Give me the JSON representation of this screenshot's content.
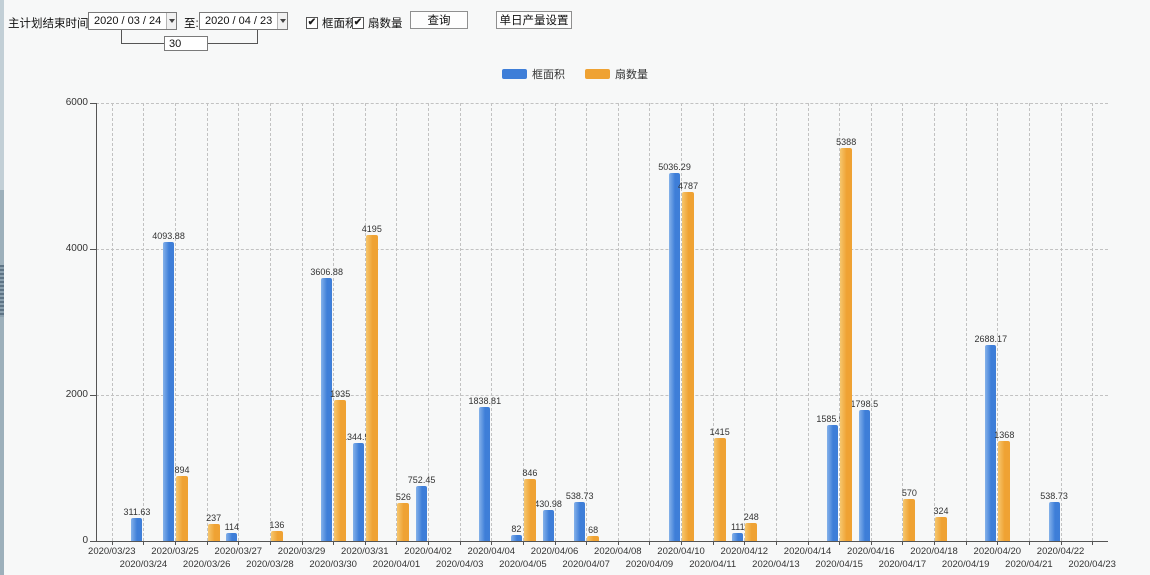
{
  "toolbar": {
    "end_time_label": "主计划结束时间:",
    "start_date": "2020 / 03 / 24",
    "to_label": "至:",
    "end_date": "2020 / 04 / 23",
    "interval_days": "30",
    "checkboxes": [
      {
        "label": "框面积",
        "checked": true,
        "check_glyph": "✔"
      },
      {
        "label": "扇数量",
        "checked": true,
        "check_glyph": "✔"
      }
    ],
    "query_button": "查询",
    "daily_output_button": "单日产量设置"
  },
  "chart_data": {
    "type": "bar",
    "title": "",
    "xlabel": "",
    "ylabel": "",
    "ylim": [
      0,
      6000
    ],
    "yticks": [
      0,
      2000,
      4000,
      6000
    ],
    "grid": true,
    "legend_position": "top",
    "categories": [
      "2020/03/23",
      "2020/03/24",
      "2020/03/25",
      "2020/03/26",
      "2020/03/27",
      "2020/03/28",
      "2020/03/29",
      "2020/03/30",
      "2020/03/31",
      "2020/04/01",
      "2020/04/02",
      "2020/04/03",
      "2020/04/04",
      "2020/04/05",
      "2020/04/06",
      "2020/04/07",
      "2020/04/08",
      "2020/04/09",
      "2020/04/10",
      "2020/04/11",
      "2020/04/12",
      "2020/04/13",
      "2020/04/14",
      "2020/04/15",
      "2020/04/16",
      "2020/04/17",
      "2020/04/18",
      "2020/04/19",
      "2020/04/20",
      "2020/04/21",
      "2020/04/22",
      "2020/04/23"
    ],
    "series": [
      {
        "name": "框面积",
        "color": "#3e7ed8",
        "color_light": "#85b2ea",
        "values": [
          null,
          311.63,
          4093.88,
          null,
          114,
          null,
          null,
          3606.88,
          1344.95,
          null,
          752.45,
          null,
          1838.81,
          82,
          430.98,
          538.73,
          null,
          null,
          5036.29,
          null,
          111,
          null,
          null,
          1585.96,
          1798.5,
          null,
          null,
          null,
          2688.17,
          null,
          538.73,
          null
        ]
      },
      {
        "name": "扇数量",
        "color": "#efa233",
        "color_light": "#f6c76f",
        "values": [
          null,
          null,
          894,
          237,
          null,
          136,
          null,
          1935,
          4195,
          526,
          null,
          null,
          null,
          846,
          null,
          68,
          null,
          null,
          4787,
          1415,
          248,
          null,
          null,
          5388,
          null,
          570,
          324,
          null,
          1368,
          null,
          null,
          null
        ]
      }
    ]
  }
}
